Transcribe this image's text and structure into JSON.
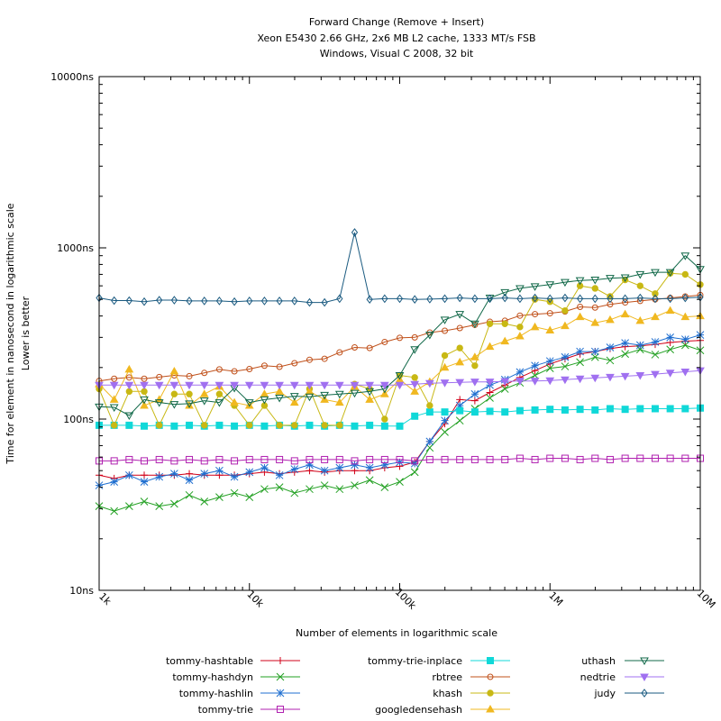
{
  "chart_data": {
    "type": "line",
    "title": [
      "Forward Change (Remove + Insert)",
      "Xeon E5430 2.66 GHz, 2x6 MB L2 cache, 1333 MT/s FSB",
      "Windows, Visual C 2008, 32 bit"
    ],
    "xlabel": "Number of elements in logarithmic scale",
    "ylabel": [
      "Time for element in nanosecond in logarithmic scale",
      "Lower is better"
    ],
    "x_scale": "log",
    "y_scale": "log",
    "xlim": [
      1000,
      10000000
    ],
    "ylim": [
      10,
      10000
    ],
    "x_ticks": [
      {
        "value": 1000,
        "label": "1k"
      },
      {
        "value": 10000,
        "label": "10k"
      },
      {
        "value": 100000,
        "label": "100k"
      },
      {
        "value": 1000000,
        "label": "1M"
      },
      {
        "value": 10000000,
        "label": "10M"
      }
    ],
    "y_ticks": [
      {
        "value": 10,
        "label": "10ns"
      },
      {
        "value": 100,
        "label": "100ns"
      },
      {
        "value": 1000,
        "label": "1000ns"
      },
      {
        "value": 10000,
        "label": "10000ns"
      }
    ],
    "x": [
      1000,
      1259,
      1585,
      1995,
      2512,
      3162,
      3981,
      5012,
      6310,
      7943,
      10000,
      12589,
      15849,
      19953,
      25119,
      31623,
      39811,
      50119,
      63096,
      79433,
      100000,
      125893,
      158489,
      199526,
      251189,
      316228,
      398107,
      501187,
      630957,
      794328,
      1000000,
      1258925,
      1584893,
      1995262,
      2511886,
      3162278,
      3981072,
      5011872,
      6309573,
      7943282,
      10000000
    ],
    "legend_position": "bottom",
    "series": [
      {
        "name": "tommy-hashtable",
        "color": "#d10018",
        "marker": "plus",
        "values": [
          47,
          45,
          47,
          47,
          47,
          47,
          48,
          47,
          47,
          47,
          48,
          49,
          48,
          49,
          50,
          49,
          50,
          50,
          50,
          52,
          53,
          56,
          74,
          94,
          130,
          128,
          143,
          158,
          175,
          192,
          210,
          225,
          240,
          248,
          258,
          265,
          268,
          273,
          280,
          285,
          288
        ]
      },
      {
        "name": "tommy-hashdyn",
        "color": "#22a022",
        "marker": "x",
        "values": [
          31,
          29,
          31,
          33,
          31,
          32,
          36,
          33,
          35,
          37,
          35,
          39,
          40,
          37,
          39,
          41,
          39,
          41,
          44,
          40,
          43,
          49,
          68,
          84,
          98,
          115,
          133,
          150,
          163,
          180,
          198,
          203,
          215,
          230,
          220,
          240,
          255,
          238,
          255,
          270,
          252
        ]
      },
      {
        "name": "tommy-hashlin",
        "color": "#1f6fd0",
        "marker": "star",
        "values": [
          41,
          43,
          47,
          43,
          46,
          48,
          44,
          48,
          50,
          46,
          49,
          52,
          47,
          51,
          54,
          50,
          52,
          54,
          52,
          54,
          56,
          55,
          74,
          98,
          120,
          140,
          158,
          170,
          188,
          205,
          218,
          230,
          248,
          248,
          262,
          278,
          270,
          282,
          300,
          292,
          310
        ]
      },
      {
        "name": "tommy-trie",
        "color": "#b020b0",
        "marker": "square",
        "values": [
          57,
          57,
          58,
          57,
          58,
          57,
          58,
          57,
          58,
          57,
          58,
          58,
          58,
          57,
          58,
          58,
          58,
          57,
          58,
          58,
          58,
          57,
          58,
          58,
          58,
          58,
          58,
          58,
          59,
          58,
          59,
          59,
          58,
          59,
          58,
          59,
          59,
          59,
          59,
          59,
          59
        ]
      },
      {
        "name": "tommy-trie-inplace",
        "color": "#10d8d8",
        "marker": "filled-square",
        "values": [
          92,
          92,
          92,
          91,
          92,
          91,
          92,
          91,
          92,
          91,
          92,
          91,
          92,
          91,
          92,
          91,
          92,
          91,
          92,
          91,
          91,
          104,
          110,
          110,
          112,
          110,
          111,
          110,
          112,
          113,
          114,
          113,
          114,
          113,
          115,
          114,
          115,
          115,
          115,
          115,
          116
        ]
      },
      {
        "name": "rbtree",
        "color": "#c0501a",
        "marker": "circle",
        "values": [
          167,
          172,
          175,
          172,
          176,
          180,
          178,
          186,
          195,
          190,
          196,
          205,
          202,
          212,
          222,
          225,
          245,
          262,
          260,
          282,
          298,
          300,
          320,
          328,
          340,
          355,
          370,
          375,
          402,
          410,
          415,
          425,
          452,
          448,
          468,
          480,
          490,
          500,
          510,
          520,
          530
        ]
      },
      {
        "name": "khash",
        "color": "#c8b814",
        "marker": "filled-circle",
        "values": [
          150,
          92,
          145,
          145,
          92,
          140,
          140,
          92,
          140,
          120,
          92,
          120,
          92,
          92,
          150,
          92,
          92,
          160,
          150,
          100,
          180,
          175,
          120,
          235,
          260,
          205,
          360,
          360,
          345,
          500,
          485,
          430,
          600,
          580,
          520,
          650,
          600,
          540,
          710,
          700,
          610
        ]
      },
      {
        "name": "googledensehash",
        "color": "#f0b820",
        "marker": "filled-triangle",
        "values": [
          160,
          130,
          195,
          120,
          130,
          190,
          120,
          140,
          155,
          125,
          120,
          140,
          145,
          125,
          145,
          130,
          125,
          155,
          130,
          140,
          170,
          145,
          165,
          200,
          215,
          230,
          265,
          285,
          305,
          345,
          330,
          350,
          395,
          365,
          380,
          410,
          375,
          395,
          430,
          395,
          400
        ]
      },
      {
        "name": "uthash",
        "color": "#106848",
        "marker": "triangle-down",
        "values": [
          118,
          117,
          105,
          130,
          125,
          122,
          123,
          128,
          125,
          152,
          125,
          130,
          133,
          136,
          135,
          138,
          140,
          142,
          145,
          150,
          180,
          255,
          310,
          380,
          410,
          360,
          510,
          550,
          580,
          595,
          610,
          630,
          645,
          650,
          665,
          670,
          700,
          720,
          720,
          900,
          750
        ]
      },
      {
        "name": "nedtrie",
        "color": "#a070f0",
        "marker": "filled-triangle-down",
        "values": [
          158,
          158,
          158,
          158,
          158,
          158,
          158,
          158,
          158,
          158,
          158,
          158,
          158,
          158,
          158,
          158,
          158,
          158,
          158,
          158,
          158,
          160,
          162,
          163,
          164,
          165,
          165,
          166,
          167,
          167,
          168,
          170,
          172,
          174,
          176,
          178,
          180,
          183,
          186,
          189,
          192
        ]
      },
      {
        "name": "judy",
        "color": "#1a5a80",
        "marker": "diamond",
        "values": [
          510,
          492,
          492,
          485,
          495,
          495,
          490,
          490,
          490,
          485,
          490,
          490,
          490,
          490,
          480,
          480,
          505,
          1230,
          500,
          505,
          505,
          500,
          502,
          505,
          510,
          505,
          505,
          510,
          505,
          510,
          505,
          510,
          505,
          505,
          505,
          505,
          510,
          505,
          505,
          510,
          515
        ]
      }
    ]
  }
}
